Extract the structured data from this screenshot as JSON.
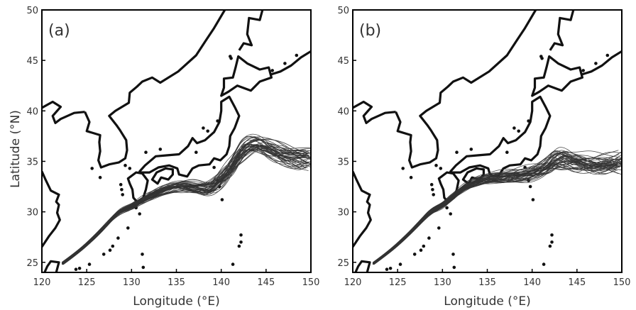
{
  "xlabel": "Longitude (°E)",
  "ylabel": "Latitude (°N)",
  "panels": [
    {
      "label": "(a)",
      "x_ticks": [
        "120",
        "125",
        "130",
        "135",
        "140",
        "145",
        "150"
      ],
      "y_ticks": [
        "25",
        "30",
        "35",
        "40",
        "45",
        "50"
      ]
    },
    {
      "label": "(b)",
      "x_ticks": [
        "120",
        "125",
        "130",
        "135",
        "140",
        "145",
        "150"
      ],
      "y_ticks": [
        "25",
        "30",
        "35",
        "40",
        "45",
        "50"
      ]
    }
  ],
  "map_extent": {
    "lon": [
      120,
      150
    ],
    "lat": [
      24,
      50
    ]
  },
  "colors": {
    "coast": "#111111",
    "path": "#333333",
    "frame": "#000000",
    "text": "#333333"
  },
  "chart_data": {
    "type": "line",
    "xlim": [
      120,
      150
    ],
    "ylim": [
      24,
      50
    ],
    "xlabel": "Longitude (°E)",
    "ylabel": "Latitude (°N)",
    "panels": [
      {
        "label": "(a)",
        "path_bundle": {
          "description_visible": false,
          "mean_path": [
            [
              122.3,
              24.9
            ],
            [
              124,
              26
            ],
            [
              126,
              27.6
            ],
            [
              127.5,
              29
            ],
            [
              128.7,
              30.1
            ],
            [
              130,
              30.5
            ],
            [
              131,
              31.1
            ],
            [
              132.5,
              31.8
            ],
            [
              134,
              32.3
            ],
            [
              135.5,
              32.6
            ],
            [
              137,
              32.5
            ],
            [
              138.5,
              32.3
            ],
            [
              139.5,
              32.9
            ],
            [
              140.5,
              33.8
            ],
            [
              141.5,
              35
            ],
            [
              142.5,
              36.3
            ],
            [
              144,
              36.8
            ],
            [
              145.5,
              36.2
            ],
            [
              147,
              35.6
            ],
            [
              148.5,
              35.4
            ],
            [
              149.5,
              35.4
            ]
          ],
          "path_count": 45,
          "spread_deg": 0.9
        }
      },
      {
        "label": "(b)",
        "path_bundle": {
          "mean_path": [
            [
              122.3,
              24.9
            ],
            [
              124,
              26
            ],
            [
              126,
              27.6
            ],
            [
              127.5,
              29
            ],
            [
              128.7,
              30.1
            ],
            [
              130,
              30.6
            ],
            [
              131,
              31.4
            ],
            [
              132.5,
              32.5
            ],
            [
              134,
              33.1
            ],
            [
              135.5,
              33.4
            ],
            [
              137,
              33.5
            ],
            [
              138.5,
              33.7
            ],
            [
              140,
              34
            ],
            [
              141.5,
              34.5
            ],
            [
              142.5,
              35.1
            ],
            [
              143.5,
              35.3
            ],
            [
              145,
              35
            ],
            [
              146.5,
              34.8
            ],
            [
              148,
              34.8
            ],
            [
              149.5,
              34.9
            ]
          ],
          "path_count": 45,
          "spread_deg": 0.8
        }
      }
    ]
  }
}
